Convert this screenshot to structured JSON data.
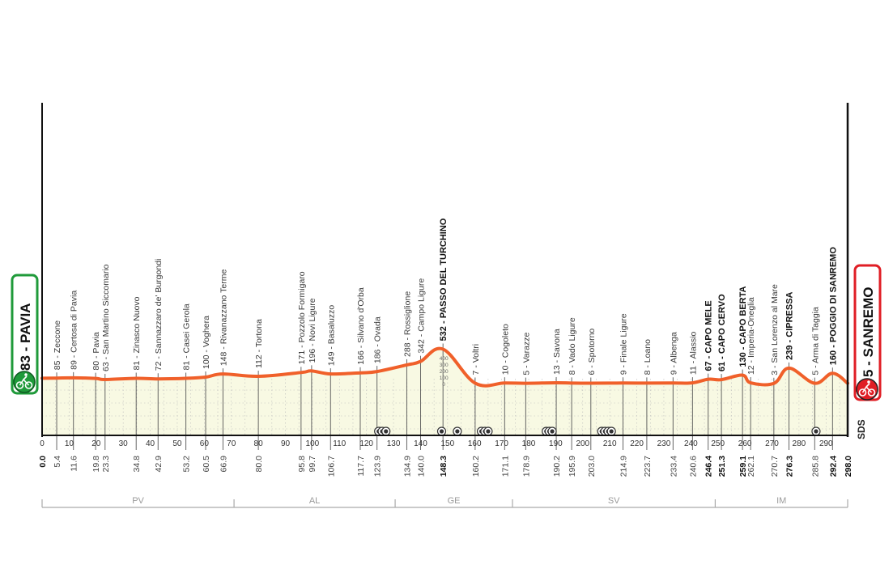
{
  "chart_data": {
    "type": "area",
    "title": "",
    "xlabel": "",
    "ylabel": "",
    "xlim": [
      0,
      298
    ],
    "x_ticks": [
      0,
      10,
      20,
      30,
      40,
      50,
      60,
      70,
      80,
      90,
      100,
      110,
      120,
      130,
      140,
      150,
      160,
      170,
      180,
      190,
      200,
      210,
      220,
      230,
      240,
      250,
      260,
      270,
      280,
      290
    ],
    "grid": true,
    "colors": {
      "profile": "#f0602a",
      "fill": "#f8f9e3",
      "start": "#1f9a3a",
      "finish": "#e01e25"
    },
    "start": {
      "label": "83 - PAVIA",
      "km": 0.0,
      "elevation": 83,
      "icon": "cyclist-icon"
    },
    "finish": {
      "label": "5 - SANREMO",
      "km": 298.0,
      "elevation": 5,
      "icon": "cyclist-icon"
    },
    "waypoints": [
      {
        "km": 0.0,
        "km_label": "0.0",
        "elevation": 83,
        "label": "",
        "bold": true
      },
      {
        "km": 5.4,
        "km_label": "5.4",
        "elevation": 85,
        "label": "85 - Zeccone"
      },
      {
        "km": 11.6,
        "km_label": "11.6",
        "elevation": 89,
        "label": "89 - Certosa di Pavia"
      },
      {
        "km": 19.8,
        "km_label": "19.8",
        "elevation": 80,
        "label": "80 - Pavia"
      },
      {
        "km": 23.3,
        "km_label": "23.3",
        "elevation": 63,
        "label": "63 - San Martino Siccomario"
      },
      {
        "km": 34.8,
        "km_label": "34.8",
        "elevation": 81,
        "label": "81 - Zinasco Nuovo"
      },
      {
        "km": 42.9,
        "km_label": "42.9",
        "elevation": 72,
        "label": "72 - Sannazzaro de' Burgondi"
      },
      {
        "km": 53.2,
        "km_label": "53.2",
        "elevation": 81,
        "label": "81 - Casei Gerola"
      },
      {
        "km": 60.5,
        "km_label": "60.5",
        "elevation": 100,
        "label": "100 - Voghera"
      },
      {
        "km": 66.9,
        "km_label": "66.9",
        "elevation": 148,
        "label": "148 - Rivanazzano Terme"
      },
      {
        "km": 80.0,
        "km_label": "80.0",
        "elevation": 112,
        "label": "112 - Tortona"
      },
      {
        "km": 95.8,
        "km_label": "95.8",
        "elevation": 171,
        "label": "171 - Pozzolo Formigaro"
      },
      {
        "km": 99.7,
        "km_label": "99.7",
        "elevation": 196,
        "label": "196 - Novi Ligure"
      },
      {
        "km": 106.7,
        "km_label": "106.7",
        "elevation": 149,
        "label": "149 - Basaluzzo"
      },
      {
        "km": 117.7,
        "km_label": "117.7",
        "elevation": 166,
        "label": "166 - Silvano d'Orba"
      },
      {
        "km": 123.9,
        "km_label": "123.9",
        "elevation": 186,
        "label": "186 - Ovada"
      },
      {
        "km": 134.9,
        "km_label": "134.9",
        "elevation": 288,
        "label": "288 - Rossiglione"
      },
      {
        "km": 140.0,
        "km_label": "140.0",
        "elevation": 342,
        "label": "342 - Campo Ligure"
      },
      {
        "km": 148.3,
        "km_label": "148.3",
        "elevation": 532,
        "label": "532 - PASSO DEL TURCHINO",
        "bold": true
      },
      {
        "km": 160.2,
        "km_label": "160.2",
        "elevation": 7,
        "label": "7 - Voltri"
      },
      {
        "km": 171.1,
        "km_label": "171.1",
        "elevation": 10,
        "label": "10 - Cogoleto"
      },
      {
        "km": 178.9,
        "km_label": "178.9",
        "elevation": 5,
        "label": "5 - Varazze"
      },
      {
        "km": 190.2,
        "km_label": "190.2",
        "elevation": 13,
        "label": "13 - Savona"
      },
      {
        "km": 195.9,
        "km_label": "195.9",
        "elevation": 8,
        "label": "8 - Vado Ligure"
      },
      {
        "km": 203.0,
        "km_label": "203.0",
        "elevation": 6,
        "label": "6 - Spotorno"
      },
      {
        "km": 214.9,
        "km_label": "214.9",
        "elevation": 9,
        "label": "9 - Finale Ligure"
      },
      {
        "km": 223.7,
        "km_label": "223.7",
        "elevation": 8,
        "label": "8 - Loano"
      },
      {
        "km": 233.4,
        "km_label": "233.4",
        "elevation": 9,
        "label": "9 - Albenga"
      },
      {
        "km": 240.6,
        "km_label": "240.6",
        "elevation": 11,
        "label": "11 - Alassio"
      },
      {
        "km": 246.4,
        "km_label": "246.4",
        "elevation": 67,
        "label": "67 - CAPO MELE",
        "bold": true
      },
      {
        "km": 251.3,
        "km_label": "251.3",
        "elevation": 61,
        "label": "61 - CAPO CERVO",
        "bold": true
      },
      {
        "km": 259.1,
        "km_label": "259.1",
        "elevation": 130,
        "label": "130 - CAPO BERTA",
        "bold": true
      },
      {
        "km": 262.1,
        "km_label": "262.1",
        "elevation": 12,
        "label": "12 - Imperia-Oneglia"
      },
      {
        "km": 270.7,
        "km_label": "270.7",
        "elevation": 3,
        "label": "3 - San Lorenzo al Mare"
      },
      {
        "km": 276.3,
        "km_label": "276.3",
        "elevation": 239,
        "label": "239 - CIPRESSA",
        "bold": true
      },
      {
        "km": 285.8,
        "km_label": "285.8",
        "elevation": 5,
        "label": "5 - Arma di Taggia"
      },
      {
        "km": 292.4,
        "km_label": "292.4",
        "elevation": 160,
        "label": "160 - POGGIO DI SANREMO",
        "bold": true
      },
      {
        "km": 298.0,
        "km_label": "298.0",
        "elevation": 5,
        "label": "",
        "bold": true
      }
    ],
    "elevation_scale": {
      "ticks": [
        "400",
        "300",
        "200",
        "100",
        "0"
      ]
    },
    "tunnel_markers_km": [
      124.5,
      125.8,
      127.2,
      147.8,
      153.6,
      162.5,
      163.8,
      165.0,
      186.5,
      187.6,
      188.7,
      207.0,
      208.2,
      209.4,
      210.6,
      286.3
    ],
    "provinces": [
      {
        "code": "PV",
        "from_km": 0,
        "to_km": 71
      },
      {
        "code": "AL",
        "from_km": 71,
        "to_km": 130.6
      },
      {
        "code": "GE",
        "from_km": 130.6,
        "to_km": 174
      },
      {
        "code": "SV",
        "from_km": 174,
        "to_km": 249
      },
      {
        "code": "IM",
        "from_km": 249,
        "to_km": 298
      }
    ]
  },
  "logo": {
    "text": "SDS"
  }
}
